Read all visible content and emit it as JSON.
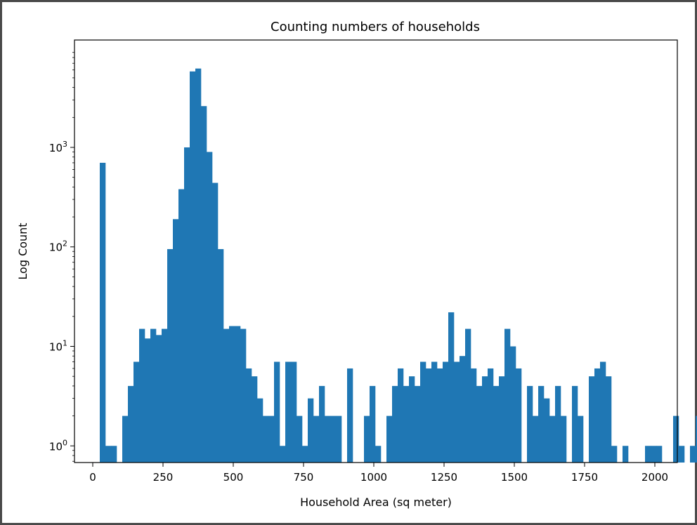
{
  "chart_data": {
    "type": "bar",
    "title": "Counting numbers of households",
    "xlabel": "Household Area (sq meter)",
    "ylabel": "Log Count",
    "yscale": "log",
    "xlim": [
      -65,
      2080
    ],
    "ylim": [
      0.68,
      12000
    ],
    "grid": false,
    "legend": "none",
    "bar_color": "#1f77b4",
    "bin_width": 20,
    "x_ticks": [
      0,
      250,
      500,
      750,
      1000,
      1250,
      1500,
      1750,
      2000
    ],
    "x_tick_labels": [
      "0",
      "250",
      "500",
      "750",
      "1000",
      "1250",
      "1500",
      "1750",
      "2000"
    ],
    "y_ticks": [
      {
        "value": 1,
        "base": "10",
        "exp": "0"
      },
      {
        "value": 10,
        "base": "10",
        "exp": "1"
      },
      {
        "value": 100,
        "base": "10",
        "exp": "2"
      },
      {
        "value": 1000,
        "base": "10",
        "exp": "3"
      }
    ],
    "bin_start": 25,
    "counts": [
      700,
      1,
      1,
      0,
      2,
      4,
      7,
      15,
      12,
      15,
      13,
      15,
      95,
      190,
      380,
      1000,
      5800,
      6200,
      2600,
      900,
      440,
      95,
      15,
      16,
      16,
      15,
      6,
      5,
      3,
      2,
      2,
      7,
      1,
      7,
      7,
      2,
      1,
      3,
      2,
      4,
      2,
      2,
      2,
      0,
      6,
      0,
      0,
      2,
      4,
      1,
      0,
      2,
      4,
      6,
      4,
      5,
      4,
      7,
      6,
      7,
      6,
      7,
      22,
      7,
      8,
      15,
      6,
      4,
      5,
      6,
      4,
      5,
      15,
      10,
      6,
      0,
      4,
      2,
      4,
      3,
      2,
      4,
      2,
      0,
      4,
      2,
      0,
      5,
      6,
      7,
      5,
      1,
      0,
      1,
      0,
      0,
      0,
      1,
      1,
      1,
      0,
      0,
      2,
      1,
      0,
      1,
      2,
      1,
      0,
      2
    ]
  }
}
